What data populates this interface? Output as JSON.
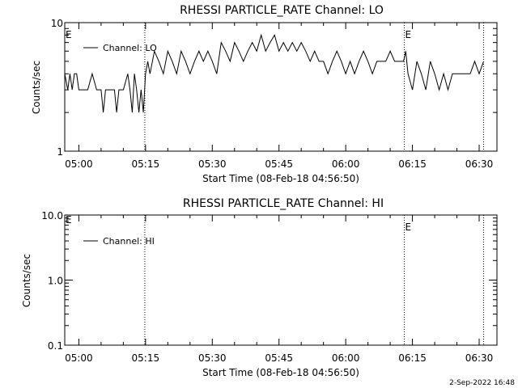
{
  "chart_data": [
    {
      "type": "line",
      "title": "RHESSI PARTICLE_RATE Channel: LO",
      "xlabel": "Start Time (08-Feb-18 04:56:50)",
      "ylabel": "Counts/sec",
      "yscale": "log",
      "ylim": [
        1,
        10
      ],
      "xlim": [
        "04:56:50",
        "06:34:00"
      ],
      "y_tick_labels": [
        "1",
        "10"
      ],
      "x_tick_labels": [
        "05:00",
        "05:15",
        "05:30",
        "05:45",
        "06:00",
        "06:15",
        "06:30"
      ],
      "legend": {
        "entries": [
          "Channel: LO"
        ],
        "placement": "top-left"
      },
      "event_lines": [
        {
          "time": "05:14:50",
          "label": ""
        },
        {
          "time": "06:13:10",
          "label": "E"
        },
        {
          "time": "06:31:00",
          "label": ""
        }
      ],
      "edge_marker_left": "E",
      "series": [
        {
          "name": "Channel: LO",
          "x": [
            "04:56:50",
            "04:57:30",
            "04:58:00",
            "04:58:30",
            "04:59:00",
            "04:59:30",
            "05:00:00",
            "05:01:00",
            "05:02:00",
            "05:03:00",
            "05:04:00",
            "05:05:00",
            "05:05:30",
            "05:06:00",
            "05:07:00",
            "05:08:00",
            "05:08:30",
            "05:09:00",
            "05:10:00",
            "05:11:00",
            "05:11:30",
            "05:12:00",
            "05:12:30",
            "05:13:00",
            "05:13:30",
            "05:14:00",
            "05:14:30",
            "05:15:00",
            "05:15:30",
            "05:16:00",
            "05:17:00",
            "05:18:00",
            "05:19:00",
            "05:20:00",
            "05:21:00",
            "05:22:00",
            "05:23:00",
            "05:24:00",
            "05:25:00",
            "05:26:00",
            "05:27:00",
            "05:28:00",
            "05:29:00",
            "05:30:00",
            "05:31:00",
            "05:32:00",
            "05:33:00",
            "05:34:00",
            "05:35:00",
            "05:36:00",
            "05:37:00",
            "05:38:00",
            "05:39:00",
            "05:40:00",
            "05:41:00",
            "05:42:00",
            "05:43:00",
            "05:44:00",
            "05:45:00",
            "05:46:00",
            "05:47:00",
            "05:48:00",
            "05:49:00",
            "05:50:00",
            "05:51:00",
            "05:52:00",
            "05:53:00",
            "05:54:00",
            "05:55:00",
            "05:56:00",
            "05:57:00",
            "05:58:00",
            "05:59:00",
            "06:00:00",
            "06:01:00",
            "06:02:00",
            "06:03:00",
            "06:04:00",
            "06:05:00",
            "06:06:00",
            "06:07:00",
            "06:08:00",
            "06:09:00",
            "06:10:00",
            "06:11:00",
            "06:12:00",
            "06:13:00",
            "06:13:30",
            "06:14:00",
            "06:15:00",
            "06:16:00",
            "06:17:00",
            "06:18:00",
            "06:19:00",
            "06:20:00",
            "06:21:00",
            "06:22:00",
            "06:23:00",
            "06:24:00",
            "06:25:00",
            "06:26:00",
            "06:27:00",
            "06:28:00",
            "06:29:00",
            "06:30:00",
            "06:31:00"
          ],
          "y": [
            4,
            3,
            4,
            3,
            4,
            4,
            3,
            3,
            3,
            4,
            3,
            3,
            2,
            3,
            3,
            3,
            2,
            3,
            3,
            4,
            3,
            2,
            4,
            3,
            2,
            3,
            2,
            4,
            5,
            4,
            6,
            5,
            4,
            6,
            5,
            4,
            6,
            5,
            4,
            5,
            6,
            5,
            6,
            5,
            4,
            7,
            6,
            5,
            7,
            6,
            5,
            6,
            7,
            6,
            8,
            6,
            7,
            8,
            6,
            7,
            6,
            7,
            6,
            7,
            6,
            5,
            6,
            5,
            5,
            4,
            5,
            6,
            5,
            4,
            5,
            4,
            5,
            6,
            5,
            4,
            5,
            5,
            5,
            6,
            5,
            5,
            5,
            6,
            4,
            3,
            5,
            4,
            3,
            5,
            4,
            3,
            4,
            3,
            4,
            4,
            4,
            4,
            4,
            5,
            4,
            5
          ]
        }
      ]
    },
    {
      "type": "line",
      "title": "RHESSI PARTICLE_RATE Channel: HI",
      "xlabel": "Start Time (08-Feb-18 04:56:50)",
      "ylabel": "Counts/sec",
      "yscale": "log",
      "ylim": [
        0.1,
        10.0
      ],
      "xlim": [
        "04:56:50",
        "06:34:00"
      ],
      "y_tick_labels": [
        "0.1",
        "1.0",
        "10.0"
      ],
      "x_tick_labels": [
        "05:00",
        "05:15",
        "05:30",
        "05:45",
        "06:00",
        "06:15",
        "06:30"
      ],
      "legend": {
        "entries": [
          "Channel: HI"
        ],
        "placement": "top-left"
      },
      "event_lines": [
        {
          "time": "05:14:50",
          "label": ""
        },
        {
          "time": "06:13:10",
          "label": "E"
        },
        {
          "time": "06:31:00",
          "label": ""
        }
      ],
      "edge_marker_left": "E",
      "series": [
        {
          "name": "Channel: HI",
          "x": [],
          "y": []
        }
      ]
    }
  ],
  "footer": {
    "timestamp": "2-Sep-2022 16:48"
  }
}
